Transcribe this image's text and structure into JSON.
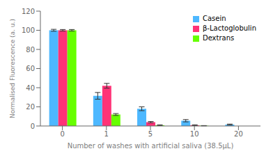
{
  "chart_data": {
    "type": "bar",
    "categories": [
      "0",
      "1",
      "5",
      "10",
      "20"
    ],
    "series": [
      {
        "name": "Casein",
        "color": "#4db8ff",
        "values": [
          100,
          31.5,
          18,
          5.5,
          1.5
        ],
        "errors": [
          1.0,
          3.5,
          2.0,
          1.2,
          0.5
        ]
      },
      {
        "name": "β-Lactoglobulin",
        "color": "#ff3377",
        "values": [
          100,
          42,
          4,
          0.8,
          0.0
        ],
        "errors": [
          0.8,
          2.5,
          0.7,
          0.4,
          0.0
        ]
      },
      {
        "name": "Dextrans",
        "color": "#66ff00",
        "values": [
          100,
          12,
          0.8,
          0.3,
          0.0
        ],
        "errors": [
          0.8,
          1.0,
          0.4,
          0.15,
          0.0
        ]
      }
    ],
    "ylabel": "Normalised Fluorescence (a. u.)",
    "xlabel": "Number of washes with artificial saliva (38.5μL)",
    "ylim": [
      0,
      120
    ],
    "yticks": [
      0,
      20,
      40,
      60,
      80,
      100,
      120
    ],
    "grid": false,
    "legend": "upper right"
  }
}
